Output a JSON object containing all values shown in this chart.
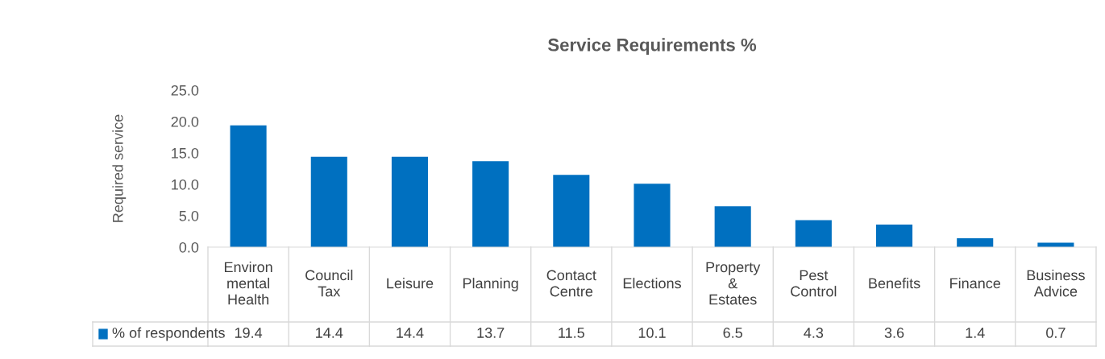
{
  "chart_data": {
    "type": "bar",
    "title": "Service Requirements %",
    "ylabel": "Required service",
    "categories": [
      "Environ\nmental\nHealth",
      "Council\nTax",
      "Leisure",
      "Planning",
      "Contact\nCentre",
      "Elections",
      "Property\n&\nEstates",
      "Pest\nControl",
      "Benefits",
      "Finance",
      "Business\nAdvice"
    ],
    "series": [
      {
        "name": "% of respondents",
        "color": "#0070c0",
        "values": [
          19.4,
          14.4,
          14.4,
          13.7,
          11.5,
          10.1,
          6.5,
          4.3,
          3.6,
          1.4,
          0.7
        ]
      }
    ],
    "ylim": [
      0,
      25
    ],
    "yticks": [
      {
        "value": 0,
        "label": "0.0"
      },
      {
        "value": 5,
        "label": "5.0"
      },
      {
        "value": 10,
        "label": "10.0"
      },
      {
        "value": 15,
        "label": "15.0"
      },
      {
        "value": 20,
        "label": "20.0"
      },
      {
        "value": 25,
        "label": "25.0"
      }
    ],
    "data_labels": true,
    "legend": "bottom",
    "grid": false
  }
}
